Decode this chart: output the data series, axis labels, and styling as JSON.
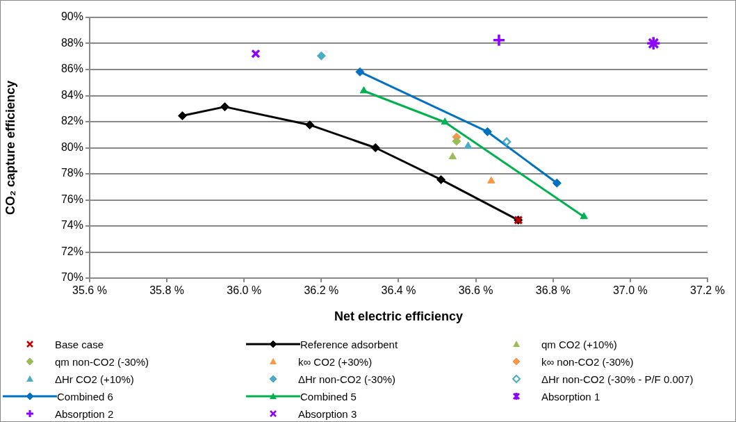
{
  "chart_data": {
    "type": "scatter",
    "xlabel": "Net electric efficiency",
    "ylabel": "CO₂ capture efficiency",
    "xlim": [
      35.6,
      37.2
    ],
    "xticks": [
      {
        "value": 35.6,
        "label": "35.6 %"
      },
      {
        "value": 35.8,
        "label": "35.8 %"
      },
      {
        "value": 36.0,
        "label": "36.0 %"
      },
      {
        "value": 36.2,
        "label": "36.2 %"
      },
      {
        "value": 36.4,
        "label": "36.4 %"
      },
      {
        "value": 36.6,
        "label": "36.6 %"
      },
      {
        "value": 36.8,
        "label": "36.8 %"
      },
      {
        "value": 37.0,
        "label": "37.0 %"
      },
      {
        "value": 37.2,
        "label": "37.2 %"
      }
    ],
    "ylim": [
      70,
      90
    ],
    "yticks": [
      {
        "value": 70,
        "label": "70%"
      },
      {
        "value": 72,
        "label": "72%"
      },
      {
        "value": 74,
        "label": "74%"
      },
      {
        "value": 76,
        "label": "76%"
      },
      {
        "value": 78,
        "label": "78%"
      },
      {
        "value": 80,
        "label": "80%"
      },
      {
        "value": 82,
        "label": "82%"
      },
      {
        "value": 84,
        "label": "84%"
      },
      {
        "value": 86,
        "label": "86%"
      },
      {
        "value": 88,
        "label": "88%"
      },
      {
        "value": 90,
        "label": "90%"
      }
    ],
    "grid": "y",
    "legend": "bottom",
    "series": [
      {
        "name": "Base case",
        "type": "scatter",
        "marker": "x",
        "color": "#c00000",
        "x": [
          36.71
        ],
        "values": [
          74.45
        ]
      },
      {
        "name": "Reference adsorbent",
        "type": "line",
        "marker": "diamond",
        "color": "#000000",
        "x": [
          35.84,
          35.95,
          36.17,
          36.34,
          36.51,
          36.71
        ],
        "values": [
          82.45,
          83.14,
          81.75,
          80.0,
          77.55,
          74.45
        ]
      },
      {
        "name": "qm CO2 (+10%)",
        "type": "scatter",
        "marker": "triangle",
        "color": "#9bbb59",
        "x": [
          36.54
        ],
        "values": [
          79.3
        ]
      },
      {
        "name": "qm non-CO2 (-30%)",
        "type": "scatter",
        "marker": "diamond",
        "color": "#9bbb59",
        "x": [
          36.55
        ],
        "values": [
          80.5
        ]
      },
      {
        "name": "k∞ CO2 (+30%)",
        "type": "scatter",
        "marker": "triangle",
        "color": "#f79646",
        "x": [
          36.64
        ],
        "values": [
          77.45
        ]
      },
      {
        "name": "k∞ non-CO2 (-30%)",
        "type": "scatter",
        "marker": "diamond",
        "color": "#f79646",
        "x": [
          36.55
        ],
        "values": [
          80.82
        ]
      },
      {
        "name": "ΔHr CO2 (+10%)",
        "type": "scatter",
        "marker": "triangle",
        "color": "#4bacc6",
        "x": [
          36.58
        ],
        "values": [
          80.13
        ]
      },
      {
        "name": "ΔHr non-CO2 (-30%)",
        "type": "scatter",
        "marker": "diamond",
        "color": "#4bacc6",
        "x": [
          36.2
        ],
        "values": [
          87.05
        ]
      },
      {
        "name": "ΔHr non-CO2 (-30% - P/F 0.007)",
        "type": "scatter",
        "marker": "diamond-open",
        "color": "#4bacc6",
        "x": [
          36.68
        ],
        "values": [
          80.46
        ]
      },
      {
        "name": "Combined 6",
        "type": "line",
        "marker": "diamond",
        "color": "#0070c0",
        "x": [
          36.3,
          36.63,
          36.81
        ],
        "values": [
          85.82,
          81.23,
          77.29
        ]
      },
      {
        "name": "Combined 5",
        "type": "line",
        "marker": "triangle",
        "color": "#00b050",
        "x": [
          36.31,
          36.52,
          36.88
        ],
        "values": [
          84.36,
          81.96,
          74.71
        ]
      },
      {
        "name": "Absorption 1",
        "type": "scatter",
        "marker": "cross",
        "color": "#8b00ff",
        "x": [
          37.06
        ],
        "values": [
          88.01
        ]
      },
      {
        "name": "Absorption 2",
        "type": "scatter",
        "marker": "plus",
        "color": "#8b00ff",
        "x": [
          36.66
        ],
        "values": [
          88.25
        ]
      },
      {
        "name": "Absorption 3",
        "type": "scatter",
        "marker": "x",
        "color": "#8b00ff",
        "x": [
          36.03
        ],
        "values": [
          87.21
        ]
      }
    ]
  }
}
